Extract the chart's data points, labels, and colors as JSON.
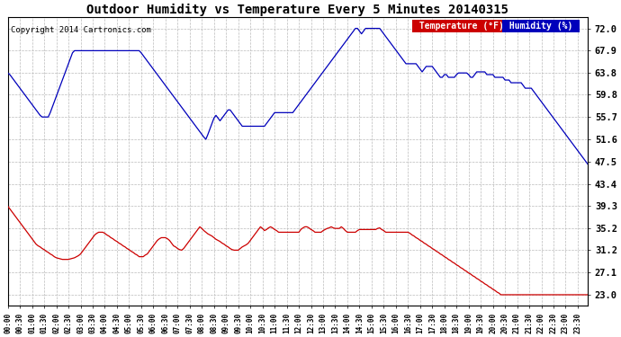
{
  "title": "Outdoor Humidity vs Temperature Every 5 Minutes 20140315",
  "copyright": "Copyright 2014 Cartronics.com",
  "legend_temp": "Temperature (°F)",
  "legend_hum": "Humidity (%)",
  "yticks": [
    23.0,
    27.1,
    31.2,
    35.2,
    39.3,
    43.4,
    47.5,
    51.6,
    55.7,
    59.8,
    63.8,
    67.9,
    72.0
  ],
  "ymin": 21.0,
  "ymax": 74.0,
  "temp_color": "#cc0000",
  "hum_color": "#0000bb",
  "bg_color": "#ffffff",
  "grid_color": "#bbbbbb",
  "n_points": 288,
  "xtick_interval": 6,
  "humidity_data": [
    63.8,
    63.5,
    63.0,
    62.5,
    62.0,
    61.5,
    61.0,
    60.5,
    60.0,
    59.5,
    59.0,
    58.5,
    58.0,
    57.5,
    57.0,
    56.5,
    56.0,
    55.7,
    55.7,
    55.7,
    55.7,
    56.5,
    57.5,
    58.5,
    59.5,
    60.5,
    61.5,
    62.5,
    63.5,
    64.5,
    65.5,
    66.5,
    67.5,
    67.9,
    67.9,
    67.9,
    67.9,
    67.9,
    67.9,
    67.9,
    67.9,
    67.9,
    67.9,
    67.9,
    67.9,
    67.9,
    67.9,
    67.9,
    67.9,
    67.9,
    67.9,
    67.9,
    67.9,
    67.9,
    67.9,
    67.9,
    67.9,
    67.9,
    67.9,
    67.9,
    67.9,
    67.9,
    67.9,
    67.9,
    67.9,
    67.9,
    67.5,
    67.0,
    66.5,
    66.0,
    65.5,
    65.0,
    64.5,
    64.0,
    63.5,
    63.0,
    62.5,
    62.0,
    61.5,
    61.0,
    60.5,
    60.0,
    59.5,
    59.0,
    58.5,
    58.0,
    57.5,
    57.0,
    56.5,
    56.0,
    55.5,
    55.0,
    54.5,
    54.0,
    53.5,
    53.0,
    52.5,
    52.0,
    51.6,
    52.5,
    53.5,
    54.5,
    55.5,
    56.0,
    55.5,
    55.0,
    55.5,
    56.0,
    56.5,
    57.0,
    57.0,
    56.5,
    56.0,
    55.5,
    55.0,
    54.5,
    54.0,
    54.0,
    54.0,
    54.0,
    54.0,
    54.0,
    54.0,
    54.0,
    54.0,
    54.0,
    54.0,
    54.0,
    54.5,
    55.0,
    55.5,
    56.0,
    56.5,
    56.5,
    56.5,
    56.5,
    56.5,
    56.5,
    56.5,
    56.5,
    56.5,
    56.5,
    57.0,
    57.5,
    58.0,
    58.5,
    59.0,
    59.5,
    60.0,
    60.5,
    61.0,
    61.5,
    62.0,
    62.5,
    63.0,
    63.5,
    64.0,
    64.5,
    65.0,
    65.5,
    66.0,
    66.5,
    67.0,
    67.5,
    68.0,
    68.5,
    69.0,
    69.5,
    70.0,
    70.5,
    71.0,
    71.5,
    72.0,
    72.0,
    71.5,
    71.0,
    71.5,
    72.0,
    72.0,
    72.0,
    72.0,
    72.0,
    72.0,
    72.0,
    72.0,
    71.5,
    71.0,
    70.5,
    70.0,
    69.5,
    69.0,
    68.5,
    68.0,
    67.5,
    67.0,
    66.5,
    66.0,
    65.5,
    65.5,
    65.5,
    65.5,
    65.5,
    65.5,
    65.0,
    64.5,
    64.0,
    64.5,
    65.0,
    65.0,
    65.0,
    65.0,
    64.5,
    64.0,
    63.5,
    63.0,
    63.0,
    63.5,
    63.5,
    63.0,
    63.0,
    63.0,
    63.0,
    63.5,
    63.8,
    63.8,
    63.8,
    63.8,
    63.8,
    63.5,
    63.0,
    63.0,
    63.5,
    64.0,
    64.0,
    64.0,
    64.0,
    64.0,
    63.5,
    63.5,
    63.5,
    63.5,
    63.0,
    63.0,
    63.0,
    63.0,
    63.0,
    62.5,
    62.5,
    62.5,
    62.0,
    62.0,
    62.0,
    62.0,
    62.0,
    62.0,
    61.5,
    61.0,
    61.0,
    61.0,
    61.0,
    60.5,
    60.0,
    59.5,
    59.0,
    58.5,
    58.0,
    57.5,
    57.0,
    56.5,
    56.0,
    55.5,
    55.0,
    54.5,
    54.0,
    53.5,
    53.0,
    52.5,
    52.0,
    51.5,
    51.0,
    50.5,
    50.0,
    49.5,
    49.0,
    48.5,
    48.0,
    47.5,
    47.0,
    46.5
  ],
  "temperature_data": [
    39.3,
    38.8,
    38.3,
    37.8,
    37.3,
    36.8,
    36.3,
    35.8,
    35.3,
    34.8,
    34.3,
    33.8,
    33.3,
    32.8,
    32.3,
    32.0,
    31.8,
    31.5,
    31.3,
    31.0,
    30.8,
    30.5,
    30.3,
    30.0,
    29.8,
    29.7,
    29.6,
    29.5,
    29.5,
    29.5,
    29.5,
    29.6,
    29.7,
    29.8,
    30.0,
    30.2,
    30.5,
    31.0,
    31.5,
    32.0,
    32.5,
    33.0,
    33.5,
    34.0,
    34.3,
    34.5,
    34.5,
    34.5,
    34.3,
    34.0,
    33.8,
    33.5,
    33.3,
    33.0,
    32.8,
    32.5,
    32.3,
    32.0,
    31.8,
    31.5,
    31.3,
    31.0,
    30.8,
    30.5,
    30.3,
    30.0,
    30.0,
    30.0,
    30.3,
    30.5,
    31.0,
    31.5,
    32.0,
    32.5,
    33.0,
    33.3,
    33.5,
    33.5,
    33.5,
    33.3,
    33.0,
    32.5,
    32.0,
    31.8,
    31.5,
    31.3,
    31.2,
    31.5,
    32.0,
    32.5,
    33.0,
    33.5,
    34.0,
    34.5,
    35.0,
    35.5,
    35.2,
    34.8,
    34.5,
    34.2,
    34.0,
    33.8,
    33.5,
    33.2,
    33.0,
    32.8,
    32.5,
    32.3,
    32.0,
    31.8,
    31.5,
    31.3,
    31.2,
    31.2,
    31.2,
    31.5,
    31.8,
    32.0,
    32.2,
    32.5,
    33.0,
    33.5,
    34.0,
    34.5,
    35.0,
    35.5,
    35.2,
    34.8,
    35.0,
    35.3,
    35.5,
    35.3,
    35.0,
    34.8,
    34.5,
    34.5,
    34.5,
    34.5,
    34.5,
    34.5,
    34.5,
    34.5,
    34.5,
    34.5,
    34.5,
    35.0,
    35.3,
    35.5,
    35.5,
    35.3,
    35.0,
    34.8,
    34.5,
    34.5,
    34.5,
    34.5,
    34.8,
    35.0,
    35.2,
    35.3,
    35.5,
    35.3,
    35.2,
    35.2,
    35.2,
    35.5,
    35.2,
    34.8,
    34.5,
    34.5,
    34.5,
    34.5,
    34.5,
    34.8,
    35.0,
    35.0,
    35.0,
    35.0,
    35.0,
    35.0,
    35.0,
    35.0,
    35.0,
    35.2,
    35.3,
    35.0,
    34.8,
    34.5,
    34.5,
    34.5,
    34.5,
    34.5,
    34.5,
    34.5,
    34.5,
    34.5,
    34.5,
    34.5,
    34.5,
    34.3,
    34.0,
    33.8,
    33.5,
    33.3,
    33.0,
    32.8,
    32.5,
    32.3,
    32.0,
    31.8,
    31.5,
    31.3,
    31.0,
    30.8,
    30.5,
    30.3,
    30.0,
    29.8,
    29.5,
    29.3,
    29.0,
    28.8,
    28.5,
    28.3,
    28.0,
    27.8,
    27.5,
    27.3,
    27.0,
    26.8,
    26.5,
    26.3,
    26.0,
    25.8,
    25.5,
    25.3,
    25.0,
    24.8,
    24.5,
    24.3,
    24.0,
    23.8,
    23.5,
    23.3,
    23.0,
    23.0,
    23.0,
    23.0,
    23.0,
    23.0,
    23.0,
    23.0,
    23.0,
    23.0,
    23.0,
    23.0,
    23.0,
    23.0,
    23.0,
    23.0,
    23.0,
    23.0,
    23.0,
    23.0,
    23.0,
    23.0,
    23.0,
    23.0,
    23.0,
    23.0,
    23.0,
    23.0,
    23.0,
    23.0,
    23.0,
    23.0,
    23.0,
    23.0,
    23.0,
    23.0,
    23.0,
    23.0,
    23.0,
    23.0,
    23.0,
    23.0,
    23.0,
    23.0,
    23.0
  ]
}
